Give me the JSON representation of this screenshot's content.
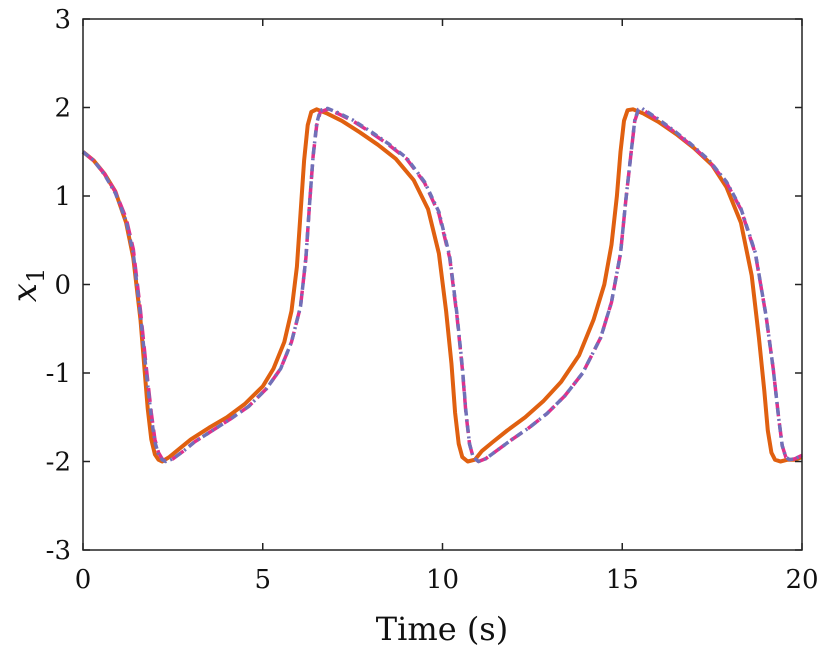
{
  "chart_data": {
    "type": "line",
    "xlabel": "Time (s)",
    "ylabel": {
      "main": "x",
      "sub": "1"
    },
    "xlim": [
      0,
      20
    ],
    "ylim": [
      -3,
      3
    ],
    "xticks": [
      0,
      5,
      10,
      15,
      20
    ],
    "xtick_labels": [
      "0",
      "5",
      "10",
      "15",
      "20"
    ],
    "yticks": [
      -3,
      -2,
      -1,
      0,
      1,
      2,
      3
    ],
    "ytick_labels": [
      "-3",
      "-2",
      "-1",
      "0",
      "1",
      "2",
      "3"
    ],
    "grid": false,
    "box": true,
    "series": [
      {
        "color": "#e06010",
        "style": "solid",
        "x": [
          0,
          0.3,
          0.6,
          0.9,
          1.2,
          1.4,
          1.6,
          1.7,
          1.8,
          1.9,
          2.0,
          2.1,
          2.2,
          2.4,
          2.7,
          3.0,
          3.5,
          4.0,
          4.5,
          5.0,
          5.3,
          5.6,
          5.8,
          5.95,
          6.05,
          6.15,
          6.25,
          6.35,
          6.5,
          6.8,
          7.2,
          7.7,
          8.2,
          8.7,
          9.2,
          9.6,
          9.9,
          10.1,
          10.25,
          10.35,
          10.45,
          10.55,
          10.7,
          10.9,
          11.1,
          11.4,
          11.8,
          12.3,
          12.8,
          13.3,
          13.8,
          14.2,
          14.5,
          14.7,
          14.85,
          14.95,
          15.05,
          15.15,
          15.3,
          15.6,
          16.0,
          16.5,
          17.0,
          17.5,
          17.9,
          18.3,
          18.6,
          18.8,
          18.95,
          19.05,
          19.15,
          19.25,
          19.4,
          19.6,
          19.8,
          20.0
        ],
        "y": [
          1.5,
          1.4,
          1.25,
          1.05,
          0.7,
          0.3,
          -0.4,
          -0.9,
          -1.4,
          -1.75,
          -1.92,
          -1.98,
          -2.0,
          -1.95,
          -1.85,
          -1.75,
          -1.62,
          -1.5,
          -1.35,
          -1.15,
          -0.95,
          -0.65,
          -0.3,
          0.2,
          0.8,
          1.4,
          1.8,
          1.95,
          1.98,
          1.93,
          1.85,
          1.72,
          1.58,
          1.42,
          1.18,
          0.85,
          0.35,
          -0.3,
          -0.9,
          -1.45,
          -1.8,
          -1.95,
          -2.0,
          -1.98,
          -1.88,
          -1.78,
          -1.65,
          -1.5,
          -1.32,
          -1.1,
          -0.8,
          -0.4,
          0.0,
          0.45,
          1.0,
          1.5,
          1.85,
          1.97,
          1.98,
          1.93,
          1.84,
          1.7,
          1.54,
          1.35,
          1.1,
          0.7,
          0.1,
          -0.6,
          -1.2,
          -1.65,
          -1.9,
          -1.98,
          -2.0,
          -1.98,
          -1.98,
          -1.95
        ]
      },
      {
        "color": "#e0308c",
        "style": "dashed",
        "x": [
          0,
          0.3,
          0.6,
          0.9,
          1.2,
          1.4,
          1.6,
          1.75,
          1.9,
          2.0,
          2.1,
          2.2,
          2.3,
          2.5,
          2.8,
          3.1,
          3.6,
          4.1,
          4.6,
          5.1,
          5.5,
          5.8,
          6.05,
          6.2,
          6.3,
          6.4,
          6.5,
          6.6,
          6.8,
          7.1,
          7.5,
          8.0,
          8.5,
          9.0,
          9.5,
          9.9,
          10.2,
          10.4,
          10.55,
          10.65,
          10.75,
          10.85,
          11.0,
          11.2,
          11.5,
          11.9,
          12.4,
          12.9,
          13.4,
          13.9,
          14.4,
          14.7,
          14.95,
          15.1,
          15.25,
          15.35,
          15.45,
          15.55,
          15.7,
          16.0,
          16.4,
          16.9,
          17.4,
          17.9,
          18.3,
          18.7,
          19.0,
          19.2,
          19.35,
          19.45,
          19.55,
          19.65,
          19.8,
          20.0
        ],
        "y": [
          1.5,
          1.4,
          1.25,
          1.05,
          0.75,
          0.4,
          -0.3,
          -0.9,
          -1.45,
          -1.75,
          -1.9,
          -1.97,
          -2.0,
          -1.97,
          -1.88,
          -1.78,
          -1.65,
          -1.52,
          -1.38,
          -1.18,
          -0.95,
          -0.65,
          -0.25,
          0.3,
          0.9,
          1.45,
          1.8,
          1.95,
          1.98,
          1.93,
          1.85,
          1.72,
          1.58,
          1.42,
          1.15,
          0.8,
          0.3,
          -0.35,
          -0.95,
          -1.45,
          -1.8,
          -1.95,
          -2.0,
          -1.97,
          -1.88,
          -1.76,
          -1.62,
          -1.46,
          -1.26,
          -1.0,
          -0.6,
          -0.2,
          0.35,
          0.95,
          1.5,
          1.85,
          1.97,
          1.98,
          1.94,
          1.86,
          1.74,
          1.58,
          1.4,
          1.15,
          0.85,
          0.35,
          -0.35,
          -0.95,
          -1.5,
          -1.82,
          -1.95,
          -1.98,
          -1.97,
          -1.93
        ]
      },
      {
        "color": "#7070b8",
        "style": "dotted",
        "x": [
          0,
          0.3,
          0.6,
          0.9,
          1.2,
          1.4,
          1.6,
          1.75,
          1.9,
          2.0,
          2.1,
          2.2,
          2.3,
          2.5,
          2.8,
          3.1,
          3.6,
          4.1,
          4.6,
          5.1,
          5.5,
          5.8,
          6.05,
          6.2,
          6.3,
          6.4,
          6.5,
          6.6,
          6.8,
          7.1,
          7.5,
          8.0,
          8.5,
          9.0,
          9.5,
          9.9,
          10.2,
          10.4,
          10.55,
          10.65,
          10.75,
          10.85,
          11.0,
          11.2,
          11.5,
          11.9,
          12.4,
          12.9,
          13.4,
          13.9,
          14.4,
          14.7,
          14.95,
          15.1,
          15.25,
          15.35,
          15.45,
          15.55,
          15.7,
          16.0,
          16.4,
          16.9,
          17.4,
          17.9,
          18.3,
          18.7,
          19.0,
          19.2,
          19.35,
          19.45,
          19.55,
          19.65,
          19.8,
          20.0
        ],
        "y": [
          1.5,
          1.4,
          1.24,
          1.03,
          0.72,
          0.35,
          -0.35,
          -0.95,
          -1.5,
          -1.78,
          -1.92,
          -1.98,
          -2.0,
          -1.97,
          -1.88,
          -1.78,
          -1.65,
          -1.52,
          -1.38,
          -1.18,
          -0.95,
          -0.65,
          -0.25,
          0.3,
          0.9,
          1.45,
          1.82,
          1.97,
          1.99,
          1.94,
          1.86,
          1.73,
          1.59,
          1.43,
          1.16,
          0.82,
          0.32,
          -0.33,
          -0.93,
          -1.43,
          -1.8,
          -1.95,
          -2.0,
          -1.97,
          -1.88,
          -1.76,
          -1.62,
          -1.46,
          -1.26,
          -1.0,
          -0.6,
          -0.2,
          0.35,
          0.95,
          1.5,
          1.86,
          1.98,
          1.99,
          1.95,
          1.87,
          1.75,
          1.59,
          1.41,
          1.16,
          0.86,
          0.36,
          -0.35,
          -0.95,
          -1.5,
          -1.82,
          -1.95,
          -1.98,
          -1.97,
          -1.93
        ]
      }
    ]
  }
}
